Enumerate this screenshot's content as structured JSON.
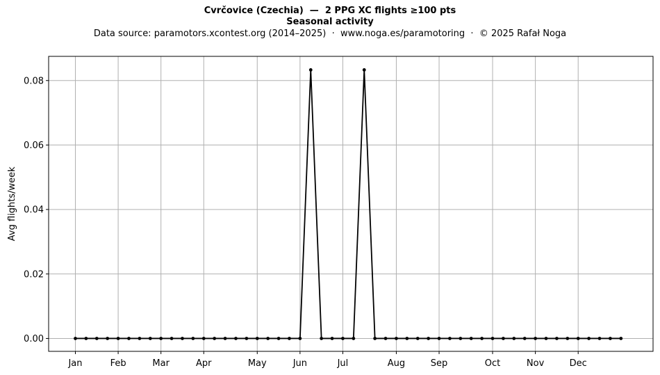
{
  "chart_data": {
    "type": "line",
    "title": "Cvrčovice (Czechia)  —  2 PPG XC flights ≥100 pts",
    "title_line2": "Seasonal activity",
    "subtitle": "Data source: paramotors.xcontest.org (2014–2025)  ·  www.noga.es/paramotoring  ·  © 2025 Rafał Noga",
    "xlabel": "",
    "ylabel": "Avg flights/week",
    "ylim": [
      -0.004,
      0.0875
    ],
    "xlim": [
      -2.5,
      54
    ],
    "grid": true,
    "legend": "none",
    "line_color": "#000000",
    "grid_color": "#b0b0b0",
    "yticks": [
      0.0,
      0.02,
      0.04,
      0.06,
      0.08
    ],
    "ytick_labels": [
      "0.00",
      "0.02",
      "0.04",
      "0.06",
      "0.08"
    ],
    "xticks": [
      0,
      4,
      8,
      12,
      17,
      21,
      25,
      30,
      34,
      39,
      43,
      47
    ],
    "xtick_labels": [
      "Jan",
      "Feb",
      "Mar",
      "Apr",
      "May",
      "Jun",
      "Jul",
      "Aug",
      "Sep",
      "Oct",
      "Nov",
      "Dec"
    ],
    "x": [
      0,
      1,
      2,
      3,
      4,
      5,
      6,
      7,
      8,
      9,
      10,
      11,
      12,
      13,
      14,
      15,
      16,
      17,
      18,
      19,
      20,
      21,
      22,
      23,
      24,
      25,
      26,
      27,
      28,
      29,
      30,
      31,
      32,
      33,
      34,
      35,
      36,
      37,
      38,
      39,
      40,
      41,
      42,
      43,
      44,
      45,
      46,
      47,
      48,
      49,
      50,
      51
    ],
    "series": [
      {
        "values": [
          0,
          0,
          0,
          0,
          0,
          0,
          0,
          0,
          0,
          0,
          0,
          0,
          0,
          0,
          0,
          0,
          0,
          0,
          0,
          0,
          0,
          0,
          0.0833,
          0,
          0,
          0,
          0,
          0.0833,
          0,
          0,
          0,
          0,
          0,
          0,
          0,
          0,
          0,
          0,
          0,
          0,
          0,
          0,
          0,
          0,
          0,
          0,
          0,
          0,
          0,
          0,
          0,
          0
        ]
      }
    ]
  }
}
